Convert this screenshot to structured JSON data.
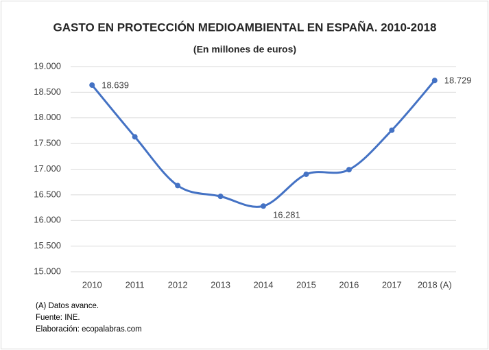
{
  "chart_data": {
    "type": "line",
    "title": "GASTO EN PROTECCIÓN MEDIOAMBIENTAL EN ESPAÑA. 2010-2018",
    "subtitle": "(En millones de euros)",
    "categories": [
      "2010",
      "2011",
      "2012",
      "2013",
      "2014",
      "2015",
      "2016",
      "2017",
      "2018 (A)"
    ],
    "series": [
      {
        "name": "Gasto",
        "color": "#4472c4",
        "values": [
          18639,
          17630,
          16680,
          16470,
          16281,
          16900,
          16990,
          17760,
          18729
        ],
        "value_labels": [
          "18.639",
          null,
          null,
          null,
          "16.281",
          null,
          null,
          null,
          "18.729"
        ]
      }
    ],
    "ylim": [
      15000,
      19000
    ],
    "yticks": [
      {
        "value": 15000,
        "label": "15.000"
      },
      {
        "value": 15500,
        "label": "15.500"
      },
      {
        "value": 16000,
        "label": "16.000"
      },
      {
        "value": 16500,
        "label": "16.500"
      },
      {
        "value": 17000,
        "label": "17.000"
      },
      {
        "value": 17500,
        "label": "17.500"
      },
      {
        "value": 18000,
        "label": "18.000"
      },
      {
        "value": 18500,
        "label": "18.500"
      },
      {
        "value": 19000,
        "label": "19.000"
      }
    ],
    "grid": true,
    "notes": [
      "(A) Datos avance.",
      "Fuente: INE.",
      "Elaboración: ecopalabras.com"
    ]
  }
}
